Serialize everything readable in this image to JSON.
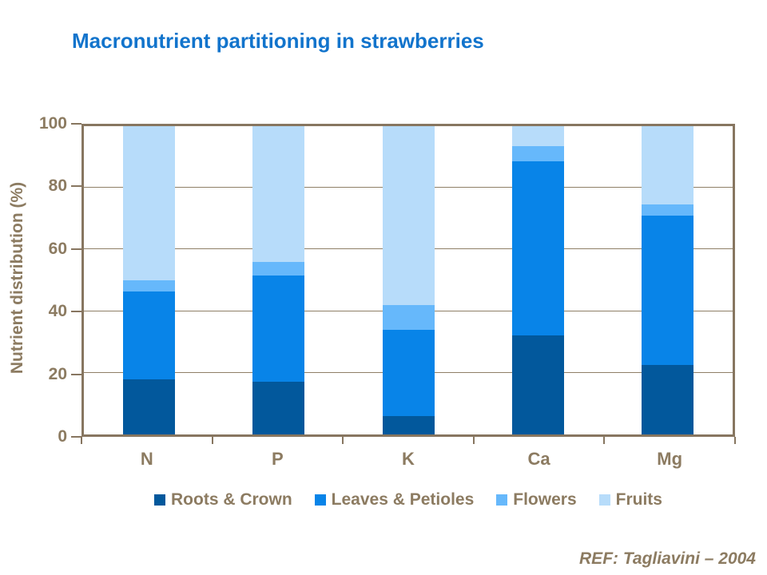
{
  "slide": {
    "title": "Macronutrient partitioning in strawberries",
    "reference": "REF: Tagliavini – 2004"
  },
  "chart_data": {
    "type": "bar",
    "stacked": true,
    "title": "Macronutrient partitioning in strawberries",
    "xlabel": "",
    "ylabel": "Nutrient distribution (%)",
    "ylim": [
      0,
      100
    ],
    "yticks": [
      0,
      20,
      40,
      60,
      80,
      100
    ],
    "grid": true,
    "legend_position": "bottom",
    "source": "REF: Tagliavini – 2004",
    "categories": [
      "N",
      "P",
      "K",
      "Ca",
      "Mg"
    ],
    "series": [
      {
        "name": "Roots & Crown",
        "color": "#02589C",
        "values": [
          18,
          17,
          6,
          32,
          22.5
        ]
      },
      {
        "name": "Leaves & Petioles",
        "color": "#0884E8",
        "values": [
          28.5,
          34.5,
          28,
          56.5,
          48.5
        ]
      },
      {
        "name": "Flowers",
        "color": "#66B8FB",
        "values": [
          3.5,
          4.5,
          8,
          5,
          3.5
        ]
      },
      {
        "name": "Fruits",
        "color": "#B7DCFA",
        "values": [
          50,
          44,
          58,
          6.5,
          25.5
        ]
      }
    ],
    "colors": {
      "title_blue": "#1274CC",
      "axis_text_brown": "#8C7B61",
      "frame_brown": "#877660",
      "gridline_brown": "#8F7F67",
      "background": "#FFFFFF"
    }
  }
}
